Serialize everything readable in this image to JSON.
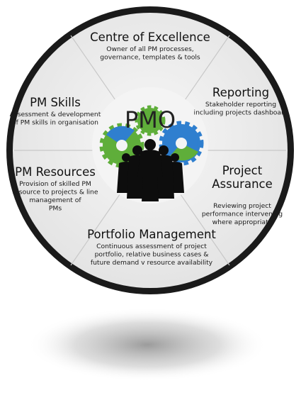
{
  "center": {
    "label": "PMO"
  },
  "segments": [
    {
      "id": "centre-of-excellence",
      "title": [
        "Centre of Excellence"
      ],
      "description": [
        "Owner of all PM processes,",
        "governance, templates & tools"
      ]
    },
    {
      "id": "reporting",
      "title": [
        "Reporting"
      ],
      "description": [
        "Stakeholder reporting",
        "including projects dashboard"
      ]
    },
    {
      "id": "project-assurance",
      "title": [
        "Project",
        "Assurance"
      ],
      "description": [
        "Reviewing project",
        "performance intervening",
        "where appropriate"
      ]
    },
    {
      "id": "portfolio-management",
      "title": [
        "Portfolio Management"
      ],
      "description": [
        "Continuous assessment of project",
        "portfolio, relative business cases &",
        "future demand v resource availability"
      ]
    },
    {
      "id": "pm-resources",
      "title": [
        "PM Resources"
      ],
      "description": [
        "Provision of skilled PM",
        "resource to projects & line",
        "management of",
        "PMs"
      ]
    },
    {
      "id": "pm-skills",
      "title": [
        "PM Skills"
      ],
      "description": [
        "Assessment & development",
        "of PM skills in organisation"
      ]
    }
  ],
  "colors": {
    "ring": "#1a1a1a",
    "disc": "#ededed",
    "divider": "#c8c8c8",
    "gear_blue": "#2f7fcf",
    "gear_green": "#5fae3a",
    "people": "#0d0d0d"
  }
}
